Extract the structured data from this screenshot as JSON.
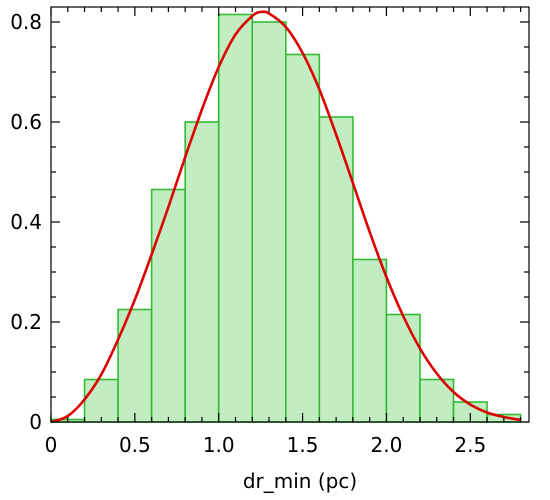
{
  "chart_data": {
    "type": "bar",
    "subtype": "histogram with fitted curve",
    "title": "",
    "xlabel": "dr_min (pc)",
    "ylabel": "",
    "xlim": [
      0,
      2.85
    ],
    "ylim": [
      0,
      0.83
    ],
    "x_ticks": [
      0,
      0.5,
      1.0,
      1.5,
      2.0,
      2.5
    ],
    "x_tick_labels": [
      "0",
      "0.5",
      "1.0",
      "1.5",
      "2.0",
      "2.5"
    ],
    "y_ticks": [
      0,
      0.2,
      0.4,
      0.6,
      0.8
    ],
    "y_tick_labels": [
      "0",
      "0.2",
      "0.4",
      "0.6",
      "0.8"
    ],
    "bin_width": 0.2,
    "bins": [
      {
        "x_start": 0.0,
        "value": 0.005
      },
      {
        "x_start": 0.2,
        "value": 0.085
      },
      {
        "x_start": 0.4,
        "value": 0.225
      },
      {
        "x_start": 0.6,
        "value": 0.465
      },
      {
        "x_start": 0.8,
        "value": 0.6
      },
      {
        "x_start": 1.0,
        "value": 0.815
      },
      {
        "x_start": 1.2,
        "value": 0.8
      },
      {
        "x_start": 1.4,
        "value": 0.735
      },
      {
        "x_start": 1.6,
        "value": 0.61
      },
      {
        "x_start": 1.8,
        "value": 0.325
      },
      {
        "x_start": 2.0,
        "value": 0.215
      },
      {
        "x_start": 2.2,
        "value": 0.085
      },
      {
        "x_start": 2.4,
        "value": 0.04
      },
      {
        "x_start": 2.6,
        "value": 0.015
      }
    ],
    "curve": {
      "x": [
        0.0,
        0.1,
        0.2,
        0.3,
        0.4,
        0.5,
        0.6,
        0.7,
        0.8,
        0.9,
        1.0,
        1.1,
        1.2,
        1.25,
        1.3,
        1.4,
        1.5,
        1.6,
        1.7,
        1.8,
        1.9,
        2.0,
        2.1,
        2.2,
        2.3,
        2.4,
        2.5,
        2.6,
        2.7,
        2.8
      ],
      "y": [
        0.0,
        0.012,
        0.045,
        0.095,
        0.165,
        0.245,
        0.335,
        0.43,
        0.53,
        0.625,
        0.71,
        0.775,
        0.812,
        0.82,
        0.817,
        0.79,
        0.738,
        0.665,
        0.575,
        0.478,
        0.38,
        0.29,
        0.212,
        0.147,
        0.097,
        0.06,
        0.035,
        0.019,
        0.01,
        0.004
      ],
      "color": "#dd0000"
    },
    "bar_fill": "#c2ecc2",
    "bar_edge": "#33bb33",
    "grid": false,
    "legend": "none"
  }
}
